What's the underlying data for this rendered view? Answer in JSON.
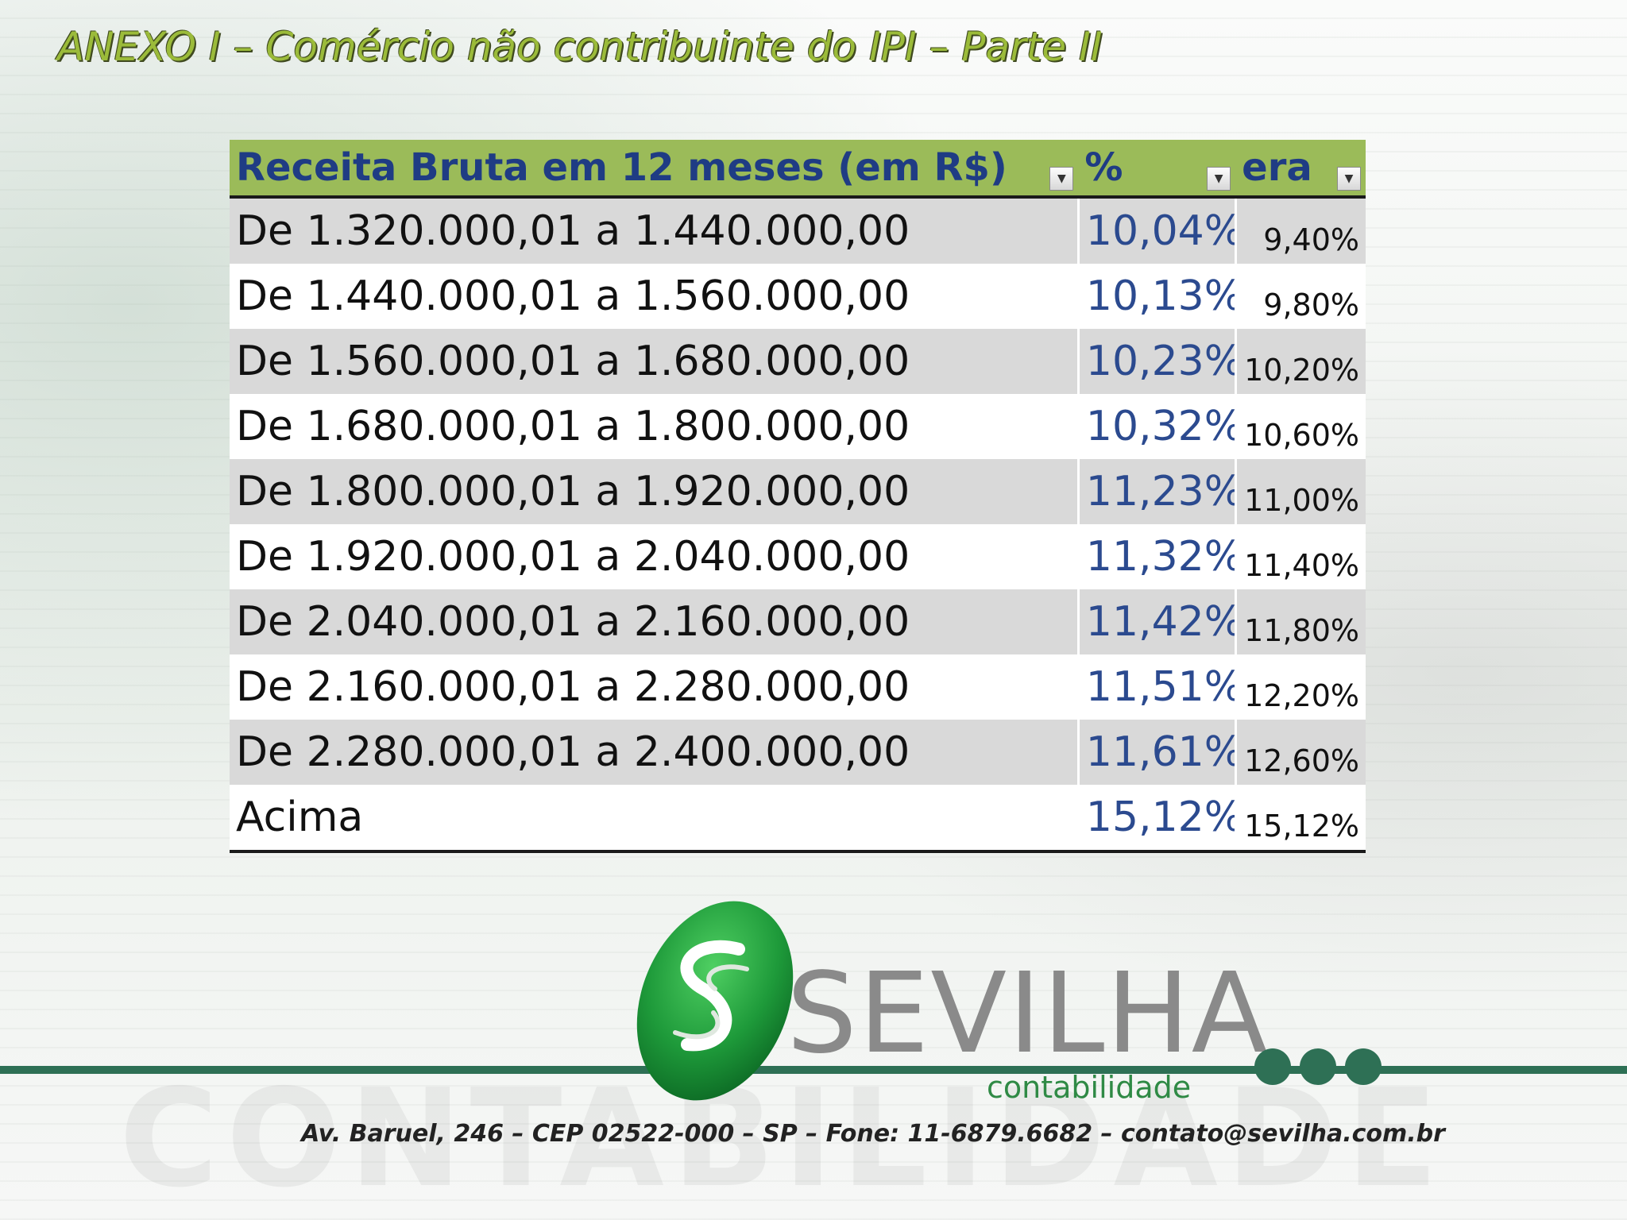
{
  "title": "ANEXO I – Comércio não contribuinte do IPI – Parte II",
  "table": {
    "headers": {
      "range": "Receita Bruta em 12 meses (em R$)",
      "pct": "%",
      "era": "era"
    },
    "rows": [
      {
        "range": "De 1.320.000,01 a 1.440.000,00",
        "pct": "10,04%",
        "era": "9,40%"
      },
      {
        "range": "De 1.440.000,01 a 1.560.000,00",
        "pct": "10,13%",
        "era": "9,80%"
      },
      {
        "range": "De 1.560.000,01 a 1.680.000,00",
        "pct": "10,23%",
        "era": "10,20%"
      },
      {
        "range": "De 1.680.000,01 a 1.800.000,00",
        "pct": "10,32%",
        "era": "10,60%"
      },
      {
        "range": "De 1.800.000,01 a 1.920.000,00",
        "pct": "11,23%",
        "era": "11,00%"
      },
      {
        "range": "De 1.920.000,01 a 2.040.000,00",
        "pct": "11,32%",
        "era": "11,40%"
      },
      {
        "range": "De 2.040.000,01 a 2.160.000,00",
        "pct": "11,42%",
        "era": "11,80%"
      },
      {
        "range": "De 2.160.000,01 a 2.280.000,00",
        "pct": "11,51%",
        "era": "12,20%"
      },
      {
        "range": "De 2.280.000,01 a 2.400.000,00",
        "pct": "11,61%",
        "era": "12,60%"
      },
      {
        "range": "Acima",
        "pct": "15,12%",
        "era": "15,12%"
      }
    ]
  },
  "logo": {
    "name": "SEVILHA",
    "sub": "contabilidade",
    "watermark": "CONTABILIDADE"
  },
  "footer": "Av. Baruel, 246 – CEP 02522-000 – SP – Fone: 11-6879.6682 – contato@sevilha.com.br",
  "colors": {
    "title": "#9bbb3a",
    "header_bg": "#9bbb59",
    "header_text": "#1f3c84",
    "pct_text": "#2b4a8f",
    "brand_green": "#2e7055",
    "logo_green": "#1e9a3a"
  },
  "icons": {
    "filter": "chevron-down-icon"
  }
}
